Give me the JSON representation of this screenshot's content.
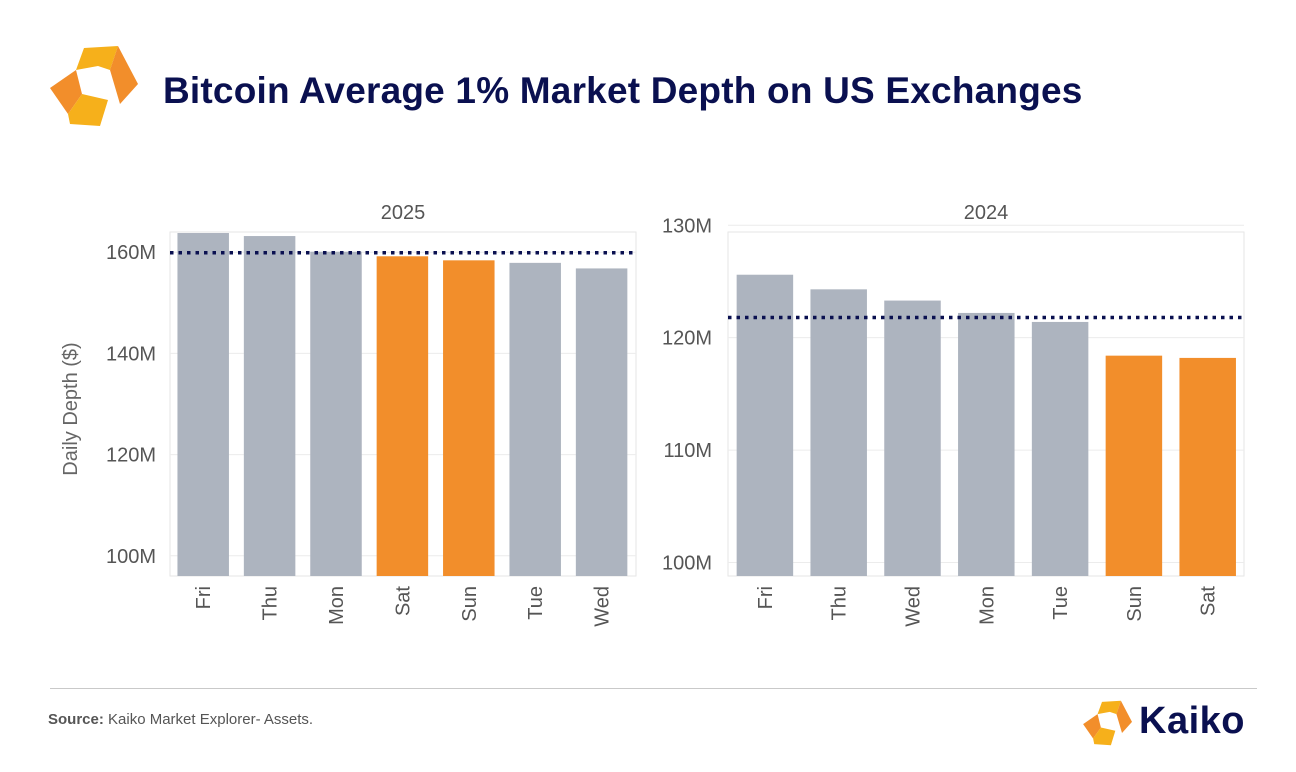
{
  "header": {
    "title": "Bitcoin Average 1% Market Depth on US Exchanges"
  },
  "colors": {
    "weekday": "#adb4bf",
    "weekend": "#f28e2b",
    "title": "#0a1050",
    "average_line": "#0a1050",
    "logo_orange": "#f28e2b",
    "logo_yellow": "#f6b01b"
  },
  "chart_data": [
    {
      "type": "bar",
      "title": "2025",
      "xlabel": "",
      "ylabel": "Daily Depth ($)",
      "ylim": [
        96,
        164
      ],
      "yticks": [
        100,
        120,
        140,
        160
      ],
      "ytick_labels": [
        "100M",
        "120M",
        "140M",
        "160M"
      ],
      "unit": "M USD",
      "categories": [
        "Fri",
        "Thu",
        "Mon",
        "Sat",
        "Sun",
        "Tue",
        "Wed"
      ],
      "values": [
        163.8,
        163.2,
        160.1,
        159.2,
        158.4,
        157.9,
        156.8
      ],
      "highlight": [
        false,
        false,
        false,
        true,
        true,
        false,
        false
      ],
      "average_line": 159.9
    },
    {
      "type": "bar",
      "title": "2024",
      "xlabel": "",
      "ylabel": "",
      "ylim": [
        98.8,
        129.4
      ],
      "yticks": [
        100,
        110,
        120,
        130
      ],
      "ytick_labels": [
        "100M",
        "110M",
        "120M",
        "130M"
      ],
      "unit": "M USD",
      "categories": [
        "Fri",
        "Thu",
        "Wed",
        "Mon",
        "Tue",
        "Sun",
        "Sat"
      ],
      "values": [
        125.6,
        124.3,
        123.3,
        122.2,
        121.4,
        118.4,
        118.2
      ],
      "highlight": [
        false,
        false,
        false,
        false,
        false,
        true,
        true
      ],
      "average_line": 121.8
    }
  ],
  "footer": {
    "source_label": "Source:",
    "source_text": "Kaiko Market Explorer- Assets.",
    "brand_name": "Kaiko"
  }
}
